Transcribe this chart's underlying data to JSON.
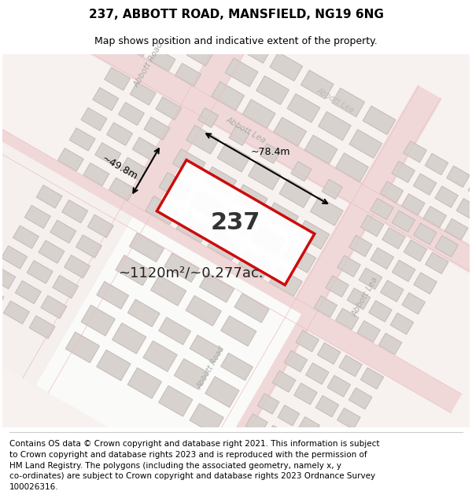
{
  "title": "237, ABBOTT ROAD, MANSFIELD, NG19 6NG",
  "subtitle": "Map shows position and indicative extent of the property.",
  "footer_lines": [
    "Contains OS data © Crown copyright and database right 2021. This information is subject",
    "to Crown copyright and database rights 2023 and is reproduced with the permission of",
    "HM Land Registry. The polygons (including the associated geometry, namely x, y",
    "co-ordinates) are subject to Crown copyright and database rights 2023 Ordnance Survey",
    "100026316."
  ],
  "area_label": "~1120m²/~0.277ac.",
  "property_number": "237",
  "dim_width": "~78.4m",
  "dim_height": "~49.8m",
  "map_bg": "#f9f5f4",
  "road_color": "#f0d8d8",
  "road_edge_color": "#e8c0c0",
  "building_fill": "#d8d2ce",
  "building_edge": "#c8bebb",
  "highlight_color": "#cc0000",
  "street_label_color": "#aaaaaa",
  "title_fontsize": 11,
  "subtitle_fontsize": 9,
  "footer_fontsize": 7.5,
  "map_rotation_deg": -30
}
